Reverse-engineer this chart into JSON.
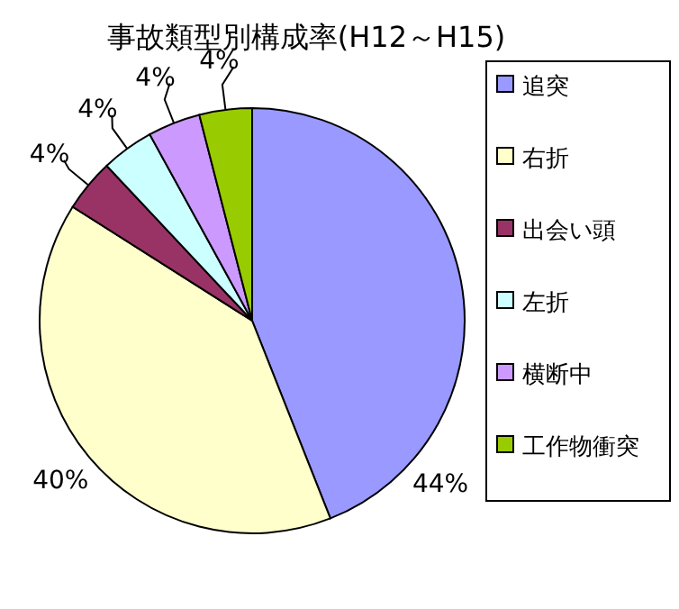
{
  "chart_data": {
    "type": "pie",
    "title": "事故類型別構成率(H12～H15)",
    "categories": [
      "追突",
      "右折",
      "出会い頭",
      "左折",
      "横断中",
      "工作物衝突"
    ],
    "values": [
      44,
      40,
      4,
      4,
      4,
      4
    ],
    "colors": [
      "#9999ff",
      "#ffffcc",
      "#993366",
      "#ccffff",
      "#cc99ff",
      "#99cc00"
    ],
    "value_labels": [
      "44%",
      "40%",
      "4%",
      "4%",
      "4%",
      "4%"
    ],
    "legend": "right"
  }
}
